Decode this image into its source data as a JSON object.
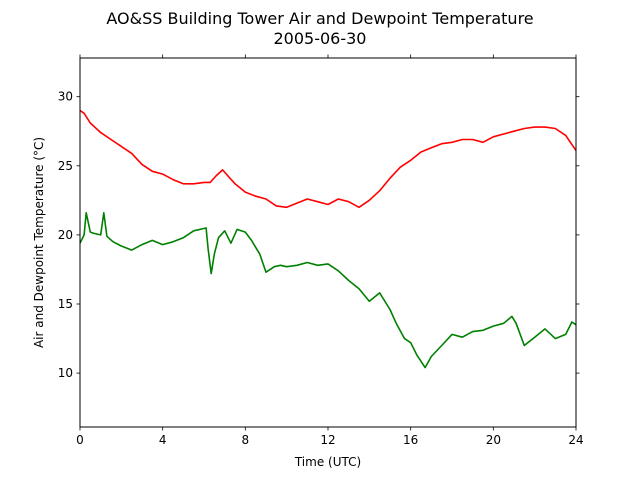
{
  "chart_data": {
    "type": "line",
    "title": "AO&SS Building Tower Air and Dewpoint Temperature",
    "subtitle": "2005-06-30",
    "xlabel": "Time (UTC)",
    "ylabel": "Air and Dewpoint Temperature (°C)",
    "xlim": [
      0,
      24
    ],
    "ylim": [
      6.1,
      32.8
    ],
    "xticks": [
      0,
      4,
      8,
      12,
      16,
      20,
      24
    ],
    "yticks": [
      10,
      15,
      20,
      25,
      30
    ],
    "grid": false,
    "legend": "none",
    "series": [
      {
        "color": "#ff0000",
        "x": [
          0,
          0.2,
          0.5,
          1,
          1.5,
          2,
          2.5,
          3,
          3.5,
          4,
          4.5,
          5,
          5.5,
          6,
          6.3,
          6.6,
          6.9,
          7.2,
          7.5,
          8,
          8.5,
          9,
          9.5,
          10,
          10.5,
          11,
          11.5,
          12,
          12.5,
          13,
          13.5,
          14,
          14.5,
          15,
          15.5,
          16,
          16.5,
          17,
          17.5,
          18,
          18.5,
          19,
          19.5,
          20,
          20.5,
          21,
          21.5,
          22,
          22.5,
          23,
          23.5,
          24
        ],
        "y": [
          29.0,
          28.8,
          28.1,
          27.4,
          26.9,
          26.4,
          25.9,
          25.1,
          24.6,
          24.4,
          24.0,
          23.7,
          23.7,
          23.8,
          23.8,
          24.3,
          24.7,
          24.2,
          23.7,
          23.1,
          22.8,
          22.6,
          22.1,
          22.0,
          22.3,
          22.6,
          22.4,
          22.2,
          22.6,
          22.4,
          22.0,
          22.5,
          23.2,
          24.1,
          24.9,
          25.4,
          26.0,
          26.3,
          26.6,
          26.7,
          26.9,
          26.9,
          26.7,
          27.1,
          27.3,
          27.5,
          27.7,
          27.8,
          27.8,
          27.7,
          27.2,
          26.1
        ]
      },
      {
        "color": "#008000",
        "x": [
          0,
          0.2,
          0.3,
          0.5,
          0.7,
          1,
          1.15,
          1.3,
          1.6,
          2,
          2.5,
          3,
          3.5,
          4,
          4.5,
          5,
          5.5,
          6.1,
          6.2,
          6.35,
          6.5,
          6.7,
          7,
          7.3,
          7.6,
          8,
          8.3,
          8.7,
          9,
          9.4,
          9.7,
          10,
          10.5,
          11,
          11.5,
          12,
          12.5,
          13,
          13.5,
          14,
          14.5,
          15,
          15.3,
          15.7,
          16,
          16.3,
          16.7,
          17,
          17.5,
          18,
          18.5,
          19,
          19.5,
          20,
          20.5,
          20.9,
          21.1,
          21.5,
          22,
          22.5,
          23,
          23.5,
          23.8,
          24
        ],
        "y": [
          19.4,
          20.0,
          21.6,
          20.2,
          20.1,
          20.0,
          21.6,
          19.9,
          19.5,
          19.2,
          18.9,
          19.3,
          19.6,
          19.3,
          19.5,
          19.8,
          20.3,
          20.5,
          19.0,
          17.2,
          18.6,
          19.8,
          20.3,
          19.4,
          20.4,
          20.2,
          19.6,
          18.6,
          17.3,
          17.7,
          17.8,
          17.7,
          17.8,
          18.0,
          17.8,
          17.9,
          17.4,
          16.7,
          16.1,
          15.2,
          15.8,
          14.6,
          13.6,
          12.5,
          12.2,
          11.3,
          10.4,
          11.2,
          12.0,
          12.8,
          12.6,
          13.0,
          13.1,
          13.4,
          13.6,
          14.1,
          13.6,
          12.0,
          12.6,
          13.2,
          12.5,
          12.8,
          13.7,
          13.5
        ]
      }
    ]
  }
}
